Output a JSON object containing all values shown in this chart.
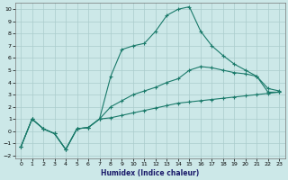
{
  "xlabel": "Humidex (Indice chaleur)",
  "background_color": "#cce8e8",
  "grid_color": "#aacccc",
  "line_color": "#1a7a6a",
  "xlim": [
    -0.5,
    23.5
  ],
  "ylim": [
    -2.2,
    10.5
  ],
  "xticks": [
    0,
    1,
    2,
    3,
    4,
    5,
    6,
    7,
    8,
    9,
    10,
    11,
    12,
    13,
    14,
    15,
    16,
    17,
    18,
    19,
    20,
    21,
    22,
    23
  ],
  "yticks": [
    -2,
    -1,
    0,
    1,
    2,
    3,
    4,
    5,
    6,
    7,
    8,
    9,
    10
  ],
  "s1_x": [
    0,
    1,
    2,
    3,
    4,
    5,
    6,
    7,
    8,
    9,
    10,
    11,
    12,
    13,
    14,
    15,
    16,
    17,
    18,
    19,
    20,
    21,
    22,
    23
  ],
  "s1_y": [
    -1.3,
    1.0,
    0.2,
    -0.2,
    -1.5,
    0.2,
    0.3,
    1.0,
    4.5,
    6.7,
    7.0,
    7.2,
    8.2,
    9.5,
    10.0,
    10.2,
    8.2,
    7.0,
    6.2,
    5.5,
    5.0,
    4.5,
    3.2,
    3.2
  ],
  "s2_x": [
    0,
    1,
    2,
    3,
    4,
    5,
    6,
    7,
    8,
    9,
    10,
    11,
    12,
    13,
    14,
    15,
    16,
    17,
    18,
    19,
    20,
    21,
    22,
    23
  ],
  "s2_y": [
    -1.3,
    1.0,
    0.2,
    -0.2,
    -1.5,
    0.2,
    0.3,
    1.0,
    2.0,
    2.5,
    3.0,
    3.3,
    3.6,
    4.0,
    4.3,
    5.0,
    5.3,
    5.2,
    5.0,
    4.8,
    4.7,
    4.5,
    3.5,
    3.3
  ],
  "s3_x": [
    0,
    1,
    2,
    3,
    4,
    5,
    6,
    7,
    8,
    9,
    10,
    11,
    12,
    13,
    14,
    15,
    16,
    17,
    18,
    19,
    20,
    21,
    22,
    23
  ],
  "s3_y": [
    -1.3,
    1.0,
    0.2,
    -0.2,
    -1.5,
    0.2,
    0.3,
    1.0,
    1.1,
    1.3,
    1.5,
    1.7,
    1.9,
    2.1,
    2.3,
    2.4,
    2.5,
    2.6,
    2.7,
    2.8,
    2.9,
    3.0,
    3.1,
    3.2
  ]
}
